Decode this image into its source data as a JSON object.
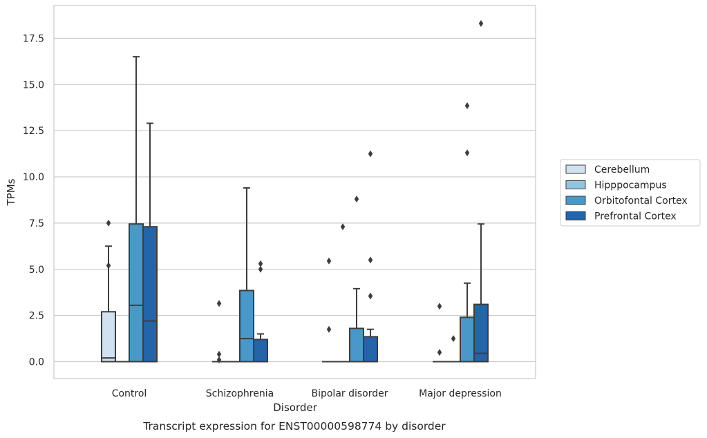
{
  "chart_data": {
    "type": "boxplot",
    "caption": "Transcript expression for ENST00000598774 by disorder",
    "xlabel": "Disorder",
    "ylabel": "TPMs",
    "ylim": [
      -0.9,
      19.2
    ],
    "yticks": [
      "0.0",
      "2.5",
      "5.0",
      "7.5",
      "10.0",
      "12.5",
      "15.0",
      "17.5"
    ],
    "grid": "horizontal",
    "legend_position": "right",
    "categories": [
      "Control",
      "Schizophrenia",
      "Bipolar disorder",
      "Major depression"
    ],
    "series": [
      {
        "name": "Cerebellum",
        "color": "#d0e1f2",
        "boxes": [
          {
            "q1": 0,
            "median": 0.2,
            "q3": 2.7,
            "whisker_low": 0,
            "whisker_high": 6.25,
            "outliers": [
              7.5,
              5.2
            ]
          },
          {
            "q1": 0,
            "median": 0,
            "q3": 0,
            "whisker_low": 0,
            "whisker_high": 0,
            "outliers": [
              3.15,
              0.4,
              0.1
            ]
          },
          {
            "q1": 0,
            "median": 0,
            "q3": 0,
            "whisker_low": 0,
            "whisker_high": 0,
            "outliers": [
              5.45,
              1.75
            ]
          },
          {
            "q1": 0,
            "median": 0,
            "q3": 0,
            "whisker_low": 0,
            "whisker_high": 0,
            "outliers": [
              3.0,
              0.5
            ]
          }
        ]
      },
      {
        "name": "Hipppocampus",
        "color": "#94c4df",
        "boxes": [
          {
            "q1": 0,
            "median": 0,
            "q3": 0,
            "whisker_low": 0,
            "whisker_high": 0,
            "outliers": []
          },
          {
            "q1": 0,
            "median": 0,
            "q3": 0,
            "whisker_low": 0,
            "whisker_high": 0,
            "outliers": []
          },
          {
            "q1": 0,
            "median": 0,
            "q3": 0,
            "whisker_low": 0,
            "whisker_high": 0,
            "outliers": [
              7.3
            ]
          },
          {
            "q1": 0,
            "median": 0,
            "q3": 0,
            "whisker_low": 0,
            "whisker_high": 0,
            "outliers": [
              1.25
            ]
          }
        ]
      },
      {
        "name": "Orbitofontal Cortex",
        "color": "#4a98c9",
        "boxes": [
          {
            "q1": 0,
            "median": 3.05,
            "q3": 7.45,
            "whisker_low": 0,
            "whisker_high": 16.5,
            "outliers": []
          },
          {
            "q1": 0,
            "median": 1.25,
            "q3": 3.85,
            "whisker_low": 0,
            "whisker_high": 9.4,
            "outliers": []
          },
          {
            "q1": 0,
            "median": 0,
            "q3": 1.8,
            "whisker_low": 0,
            "whisker_high": 3.95,
            "outliers": [
              8.8
            ]
          },
          {
            "q1": 0,
            "median": 0,
            "q3": 2.4,
            "whisker_low": 0,
            "whisker_high": 4.25,
            "outliers": [
              13.85,
              11.3
            ]
          }
        ]
      },
      {
        "name": "Prefrontal Cortex",
        "color": "#2464a8",
        "boxes": [
          {
            "q1": 0,
            "median": 2.2,
            "q3": 7.3,
            "whisker_low": 0,
            "whisker_high": 12.9,
            "outliers": []
          },
          {
            "q1": 0,
            "median": 0,
            "q3": 1.2,
            "whisker_low": 0,
            "whisker_high": 1.5,
            "outliers": [
              5.3,
              5.0
            ]
          },
          {
            "q1": 0,
            "median": 0,
            "q3": 1.35,
            "whisker_low": 0,
            "whisker_high": 1.75,
            "outliers": [
              11.25,
              5.5,
              3.55
            ]
          },
          {
            "q1": 0,
            "median": 0.45,
            "q3": 3.1,
            "whisker_low": 0,
            "whisker_high": 7.45,
            "outliers": [
              18.3
            ]
          }
        ]
      }
    ]
  }
}
